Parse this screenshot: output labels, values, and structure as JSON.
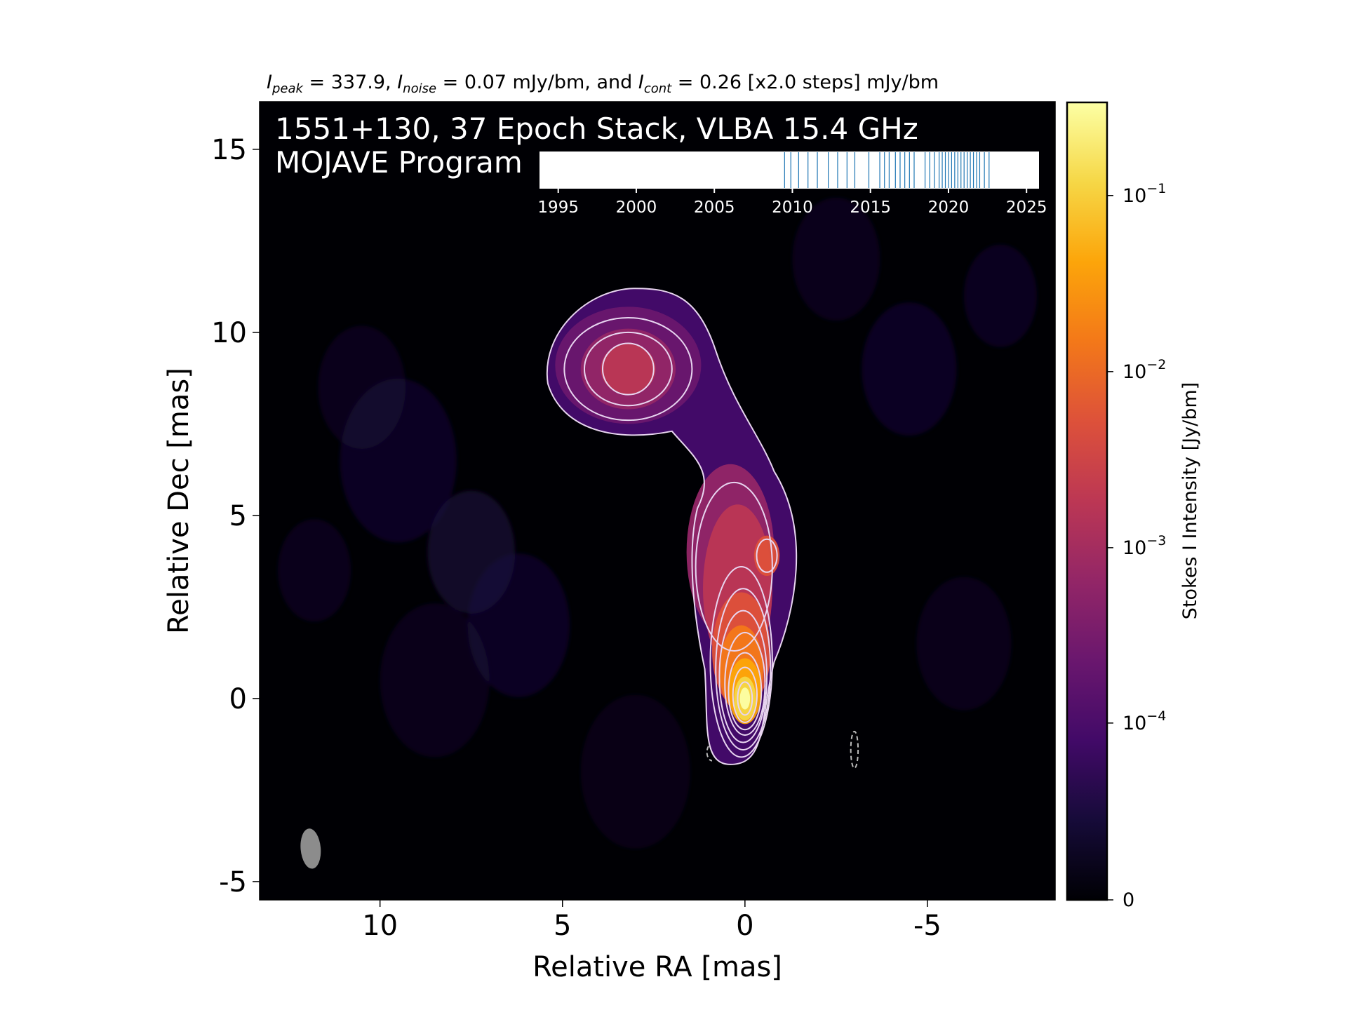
{
  "chart_data": {
    "type": "heatmap",
    "header": {
      "peak_symbol": "I",
      "peak_sub": "peak",
      "peak_text": " = 337.9, ",
      "noise_symbol": "I",
      "noise_sub": "noise",
      "noise_text": " = 0.07 mJy/bm, and ",
      "cont_symbol": "I",
      "cont_sub": "cont",
      "cont_text": " = 0.26 [x2.0 steps] mJy/bm"
    },
    "title_line1": "1551+130, 37 Epoch Stack, VLBA 15.4 GHz",
    "title_line2": "MOJAVE Program",
    "xlabel": "Relative RA [mas]",
    "ylabel": "Relative Dec [mas]",
    "xlim": [
      13.3,
      -8.5
    ],
    "ylim": [
      -5.5,
      16.3
    ],
    "x_ticks": [
      10,
      5,
      0,
      -5
    ],
    "x_tick_labels": [
      "10",
      "5",
      "0",
      "-5"
    ],
    "y_ticks": [
      15,
      10,
      5,
      0,
      -5
    ],
    "y_tick_labels": [
      "15",
      "10",
      "5",
      "0",
      "-5"
    ],
    "colorbar": {
      "label": "Stokes I Intensity [Jy/bm]",
      "colormap": "inferno",
      "ticks": [
        0,
        0.0001,
        0.001,
        0.01,
        0.1
      ],
      "tick_labels": [
        {
          "base": "0",
          "exp": ""
        },
        {
          "base": "10",
          "exp": "−4"
        },
        {
          "base": "10",
          "exp": "−3"
        },
        {
          "base": "10",
          "exp": "−2"
        },
        {
          "base": "10",
          "exp": "−1"
        }
      ],
      "max": 0.3379
    },
    "components": [
      {
        "ra": 0.0,
        "dec": 0.0,
        "peak": 0.3379
      },
      {
        "ra": 0.15,
        "dec": 1.6,
        "peak": 0.05
      },
      {
        "ra": -0.6,
        "dec": 3.9,
        "peak": 0.025
      },
      {
        "ra": 0.4,
        "dec": 5.2,
        "peak": 0.012
      },
      {
        "ra": 3.2,
        "dec": 9.0,
        "peak": 0.011
      }
    ],
    "beam": {
      "ra": 11.9,
      "dec": -4.1,
      "major_mas": 1.1,
      "minor_mas": 0.55,
      "pa_deg": -5
    },
    "epoch_timeline": {
      "x_range": [
        1993.8,
        2025.8
      ],
      "ticks": [
        1995,
        2000,
        2005,
        2010,
        2015,
        2020,
        2025
      ],
      "tick_labels": [
        "1995",
        "2000",
        "2005",
        "2010",
        "2015",
        "2020",
        "2025"
      ],
      "epochs": [
        2009.5,
        2009.9,
        2010.4,
        2011.0,
        2011.6,
        2012.3,
        2012.9,
        2013.5,
        2014.0,
        2014.9,
        2015.6,
        2015.9,
        2016.2,
        2016.6,
        2016.9,
        2017.2,
        2017.5,
        2017.8,
        2018.5,
        2018.8,
        2019.1,
        2019.4,
        2019.6,
        2019.8,
        2020.0,
        2020.2,
        2020.4,
        2020.6,
        2020.8,
        2021.0,
        2021.2,
        2021.4,
        2021.6,
        2021.8,
        2022.0,
        2022.3,
        2022.6
      ],
      "color": "#1f77b4"
    },
    "contour_color": "#e8d5f0"
  }
}
